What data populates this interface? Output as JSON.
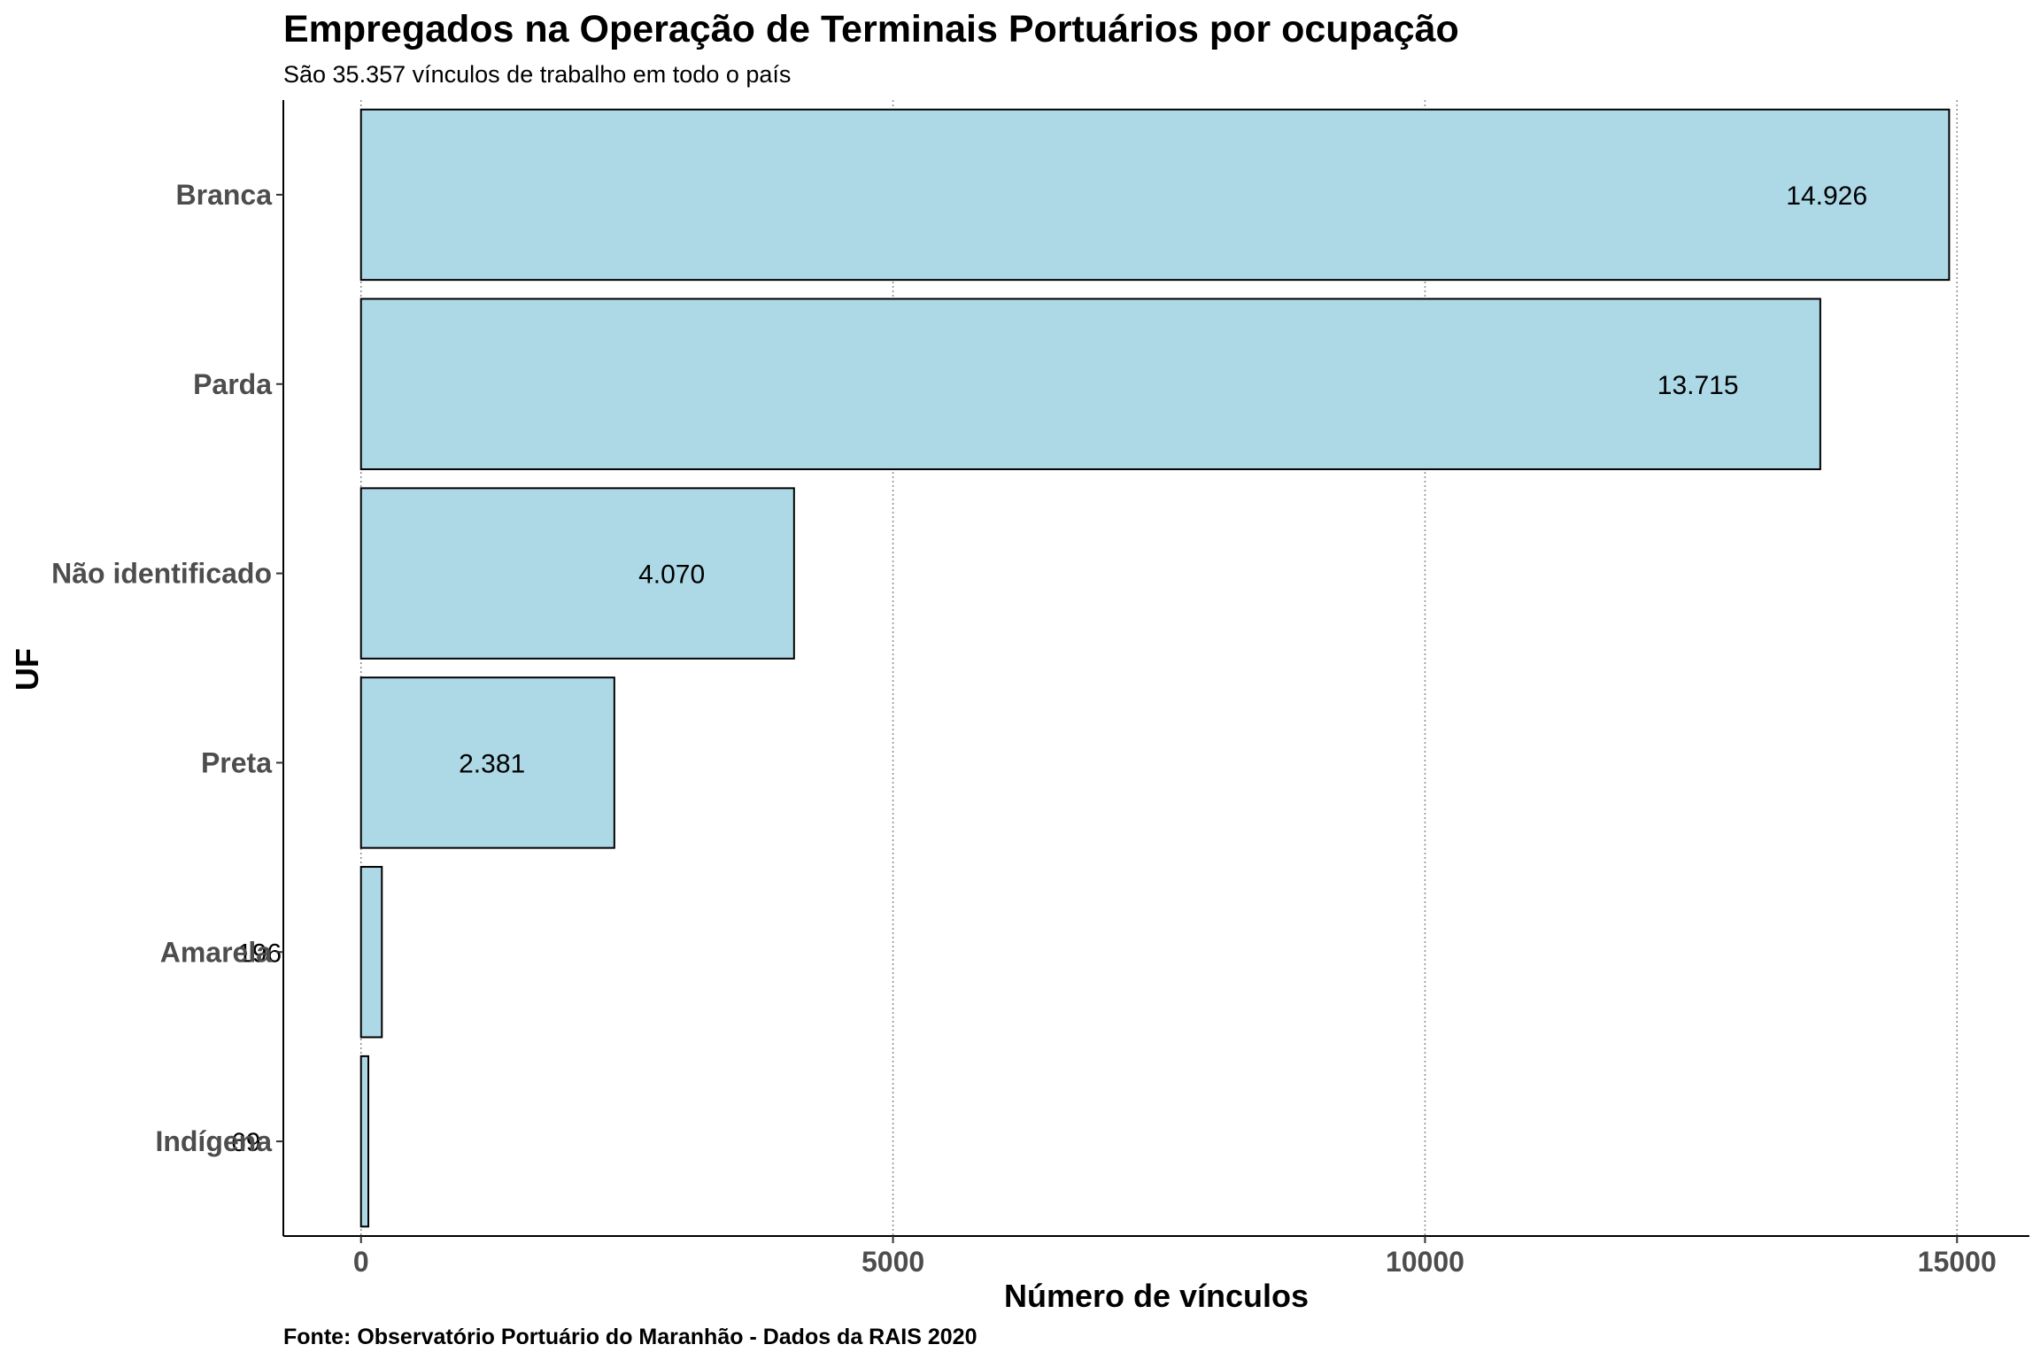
{
  "chart_data": {
    "type": "bar",
    "orientation": "horizontal",
    "title": "Empregados na Operação de Terminais Portuários por ocupação",
    "subtitle": "São 35.357 vínculos de trabalho em todo o país",
    "caption": "Fonte: Observatório Portuário do Maranhão - Dados da RAIS 2020",
    "xlabel": "Número de vínculos",
    "ylabel": "UF",
    "categories": [
      "Branca",
      "Parda",
      "Não identificado",
      "Preta",
      "Amarela",
      "Indígena"
    ],
    "values": [
      14926,
      13715,
      4070,
      2381,
      196,
      69
    ],
    "value_labels": [
      "14.926",
      "13.715",
      "4.070",
      "2.381",
      "196",
      "69"
    ],
    "xticks": [
      0,
      5000,
      10000,
      15000
    ],
    "xtick_labels": [
      "0",
      "5000",
      "10000",
      "15000"
    ],
    "xlim": [
      -730,
      15680
    ],
    "grid": "vertical dotted",
    "bar_fill": "#add8e6",
    "bar_stroke": "#000000"
  }
}
